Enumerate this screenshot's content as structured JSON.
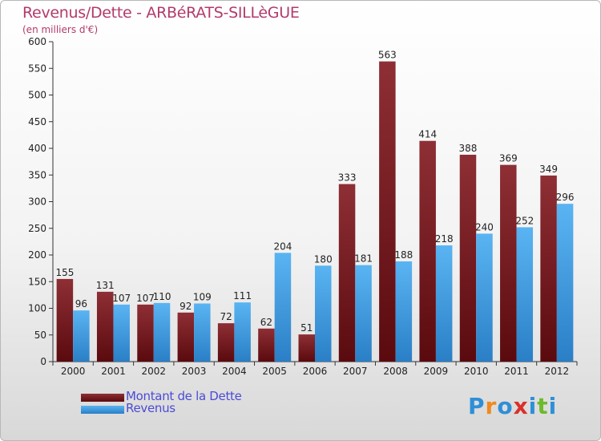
{
  "header": {
    "title": "Revenus/Dette - ARBéRATS-SILLèGUE",
    "subtitle": "(en milliers d'€)"
  },
  "colors": {
    "dette": "#7a1f25",
    "revenus": "#4aa3e6",
    "title": "#b33a6b",
    "legend_text": "#4b4bd8"
  },
  "legend": {
    "items": [
      {
        "label": "Montant de la Dette",
        "color": "#7a1f25"
      },
      {
        "label": "Revenus",
        "color": "#4aa3e6"
      }
    ]
  },
  "logo": {
    "text": "Proxiti",
    "letter_colors": [
      "#2e8fd8",
      "#f08a1c",
      "#2e8fd8",
      "#d9312b",
      "#2e8fd8",
      "#6cbb2a",
      "#2e8fd8"
    ]
  },
  "chart_data": {
    "type": "bar",
    "title": "Revenus/Dette - ARBéRATS-SILLèGUE",
    "ylabel": "(en milliers d'€)",
    "xlabel": "",
    "categories": [
      "2000",
      "2001",
      "2002",
      "2003",
      "2004",
      "2005",
      "2006",
      "2007",
      "2008",
      "2009",
      "2010",
      "2011",
      "2012"
    ],
    "series": [
      {
        "name": "Montant de la Dette",
        "values": [
          155,
          131,
          107,
          92,
          72,
          62,
          51,
          333,
          563,
          414,
          388,
          369,
          349
        ]
      },
      {
        "name": "Revenus",
        "values": [
          96,
          107,
          110,
          109,
          111,
          204,
          180,
          181,
          188,
          218,
          240,
          252,
          296
        ]
      }
    ],
    "ylim": [
      0,
      600
    ],
    "yticks": [
      0,
      50,
      100,
      150,
      200,
      250,
      300,
      350,
      400,
      450,
      500,
      550,
      600
    ],
    "grid": false,
    "legend_position": "bottom-left"
  }
}
